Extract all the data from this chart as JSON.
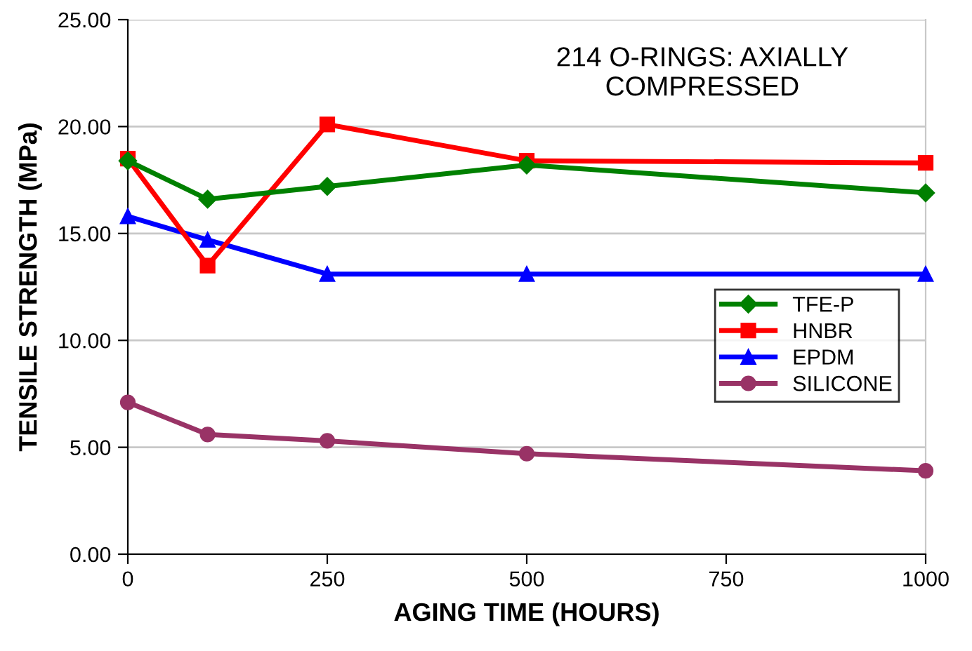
{
  "chart_data": {
    "type": "line",
    "title": "214 O-RINGS: AXIALLY\nCOMPRESSED",
    "xlabel": "AGING TIME (HOURS)",
    "ylabel": "TENSILE STRENGTH (MPa)",
    "x": [
      0,
      100,
      250,
      500,
      1000
    ],
    "series": [
      {
        "name": "TFE-P",
        "color": "#008000",
        "marker": "diamond",
        "values": [
          18.4,
          16.6,
          17.2,
          18.2,
          16.9
        ]
      },
      {
        "name": "HNBR",
        "color": "#ff0000",
        "marker": "square",
        "values": [
          18.5,
          13.5,
          20.1,
          18.4,
          18.3
        ]
      },
      {
        "name": "EPDM",
        "color": "#0000ff",
        "marker": "triangle",
        "values": [
          15.8,
          14.7,
          13.1,
          13.1,
          13.1
        ]
      },
      {
        "name": "SILICONE",
        "color": "#993366",
        "marker": "circle",
        "values": [
          7.1,
          5.6,
          5.3,
          4.7,
          3.9
        ]
      }
    ],
    "xlim": [
      0,
      1000
    ],
    "xticks": [
      0,
      250,
      500,
      750,
      1000
    ],
    "ylim": [
      0,
      25
    ],
    "yticks": [
      {
        "value": 0,
        "label": "0.00"
      },
      {
        "value": 5,
        "label": "5.00"
      },
      {
        "value": 10,
        "label": "10.00"
      },
      {
        "value": 15,
        "label": "15.00"
      },
      {
        "value": 20,
        "label": "20.00"
      },
      {
        "value": 25,
        "label": "25.00"
      }
    ],
    "grid": "y",
    "legend": "right"
  }
}
